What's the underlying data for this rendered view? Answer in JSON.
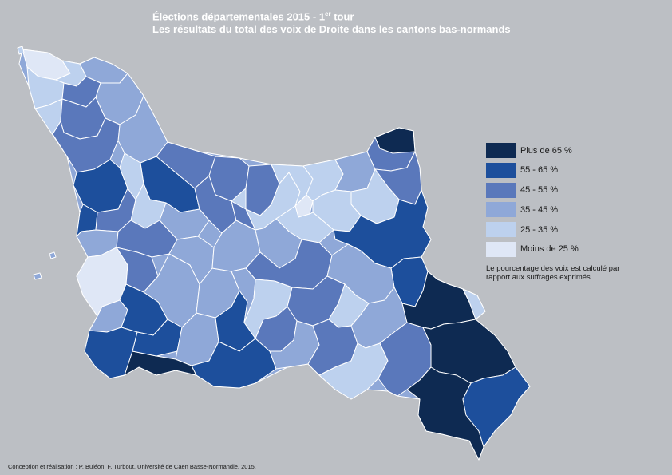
{
  "title": {
    "line1_prefix": "Élections départementales 2015 - 1",
    "line1_sup": "er",
    "line1_suffix": " tour",
    "line2": "Les résultats du total des voix de Droite dans les cantons bas-normands"
  },
  "legend": {
    "items": [
      {
        "label": "Plus de 65 %",
        "color": "#0e2a52"
      },
      {
        "label": "55 - 65 %",
        "color": "#1d4f9c"
      },
      {
        "label": "45 - 55 %",
        "color": "#5a78bb"
      },
      {
        "label": "35 - 45 %",
        "color": "#8fa8d8"
      },
      {
        "label": "25 - 35 %",
        "color": "#bdd1ee"
      },
      {
        "label": "Moins de 25 %",
        "color": "#dfe7f6"
      }
    ],
    "note": "Le pourcentage des voix est calculé par rapport aux suffrages exprimés"
  },
  "credits": "Conception et réalisation : P. Buléon, F. Turbout, Université de Caen Basse-Normandie, 2015.",
  "colors": {
    "background": "#bcbfc4",
    "border": "#ffffff"
  }
}
